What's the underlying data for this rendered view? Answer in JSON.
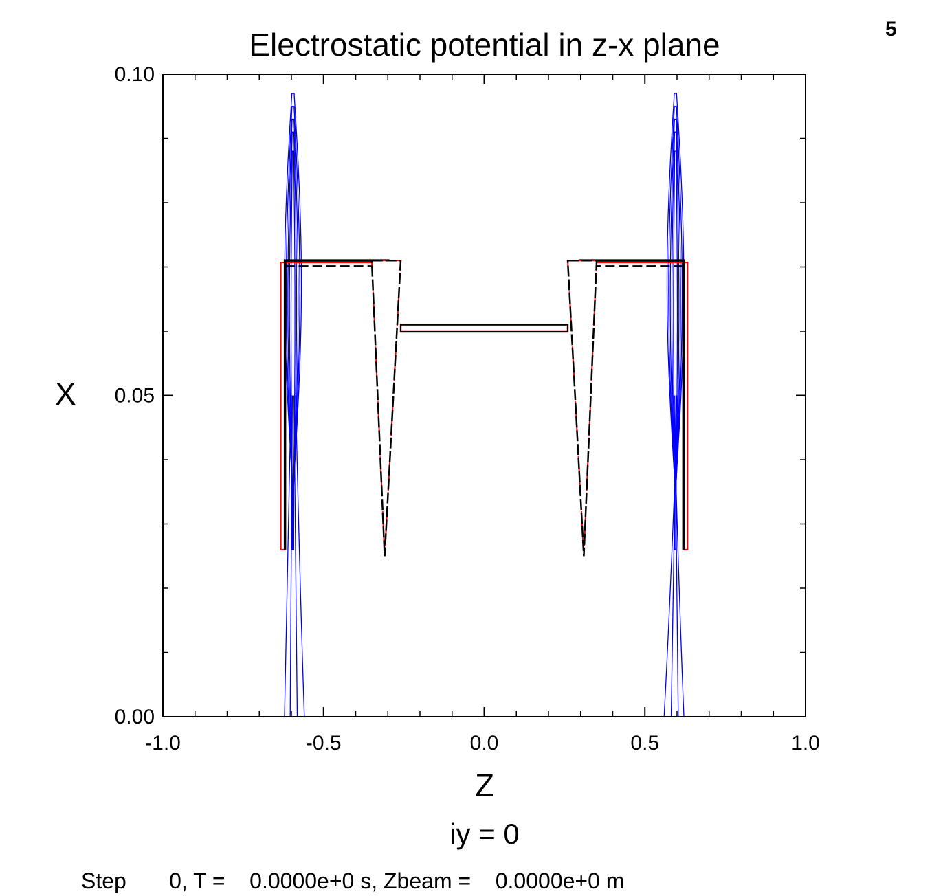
{
  "frame_number": "5",
  "chart_data": {
    "type": "contour",
    "title": "Electrostatic potential in z-x plane",
    "xlabel": "Z",
    "ylabel": "X",
    "subtitle": "iy = 0",
    "xlim": [
      -1.0,
      1.0
    ],
    "ylim": [
      0.0,
      0.1
    ],
    "x_ticks": [
      "-1.0",
      "-0.5",
      "0.0",
      "0.5",
      "1.0"
    ],
    "y_ticks": [
      "0.00",
      "0.05",
      "0.10"
    ],
    "grid": false,
    "colors": {
      "contour": "#0000ff",
      "conductor": "#000000",
      "conductor_outline": "#ff0000"
    },
    "conductors": [
      {
        "shape": "polygon",
        "points": [
          [
            -0.62,
            0.071
          ],
          [
            -0.295,
            0.071
          ],
          [
            -0.3,
            0.026
          ],
          [
            -0.62,
            0.026
          ]
        ]
      },
      {
        "shape": "polygon",
        "points": [
          [
            0.62,
            0.071
          ],
          [
            0.295,
            0.071
          ],
          [
            0.3,
            0.026
          ],
          [
            0.62,
            0.026
          ]
        ]
      },
      {
        "shape": "triangle",
        "points": [
          [
            -0.35,
            0.071
          ],
          [
            -0.26,
            0.071
          ],
          [
            -0.31,
            0.025
          ]
        ]
      },
      {
        "shape": "triangle",
        "points": [
          [
            0.26,
            0.071
          ],
          [
            0.35,
            0.071
          ],
          [
            0.31,
            0.025
          ]
        ]
      },
      {
        "shape": "plate",
        "points": [
          [
            -0.26,
            0.061
          ],
          [
            0.26,
            0.061
          ],
          [
            0.26,
            0.06
          ],
          [
            -0.26,
            0.06
          ]
        ]
      }
    ],
    "contours": [
      {
        "center_z": -0.595,
        "half_width": [
          0.004,
          0.009,
          0.014,
          0.019,
          0.024
        ],
        "top": [
          0.088,
          0.091,
          0.093,
          0.095,
          0.097
        ]
      },
      {
        "center_z": 0.595,
        "half_width": [
          0.004,
          0.009,
          0.014,
          0.019,
          0.024
        ],
        "top": [
          0.088,
          0.091,
          0.093,
          0.095,
          0.097
        ]
      }
    ]
  },
  "footer": "Step       0, T =    0.0000e+0 s, Zbeam =    0.0000e+0 m"
}
